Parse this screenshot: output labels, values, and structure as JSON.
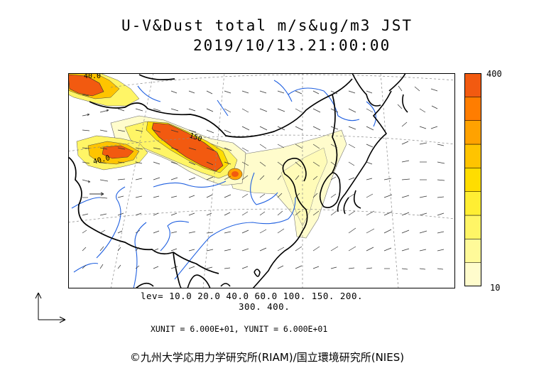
{
  "title": {
    "line1": "U-V&Dust total m/s&ug/m3 JST",
    "line2": "2019/10/13.21:00:00"
  },
  "map": {
    "contour_label_1": "40.0",
    "contour_label_2": "150",
    "contour_label_3": "40.0",
    "background": "#ffffff",
    "coastline_color": "#000000",
    "border_color": "#000000",
    "river_color": "#2060e0",
    "grid_color": "#888888",
    "arrow_color": "#333333"
  },
  "dust_contours": {
    "levels": [
      10.0,
      20.0,
      40.0,
      60.0,
      100.0,
      150.0,
      200.0,
      300.0,
      400.0
    ],
    "colors": [
      "#fffccc",
      "#fffa99",
      "#fff566",
      "#ffee33",
      "#ffdd00",
      "#ffc400",
      "#ffa200",
      "#ff7d00",
      "#f25a10"
    ]
  },
  "legend": {
    "max_label": "400",
    "min_label": "10",
    "levels_line1": "lev= 10.0 20.0 40.0 60.0 100. 150. 200.",
    "levels_line2": "300. 400."
  },
  "units_text": "XUNIT = 6.000E+01, YUNIT = 6.000E+01",
  "copyright": "©九州大学応用力学研究所(RIAM)/国立環境研究所(NIES)"
}
